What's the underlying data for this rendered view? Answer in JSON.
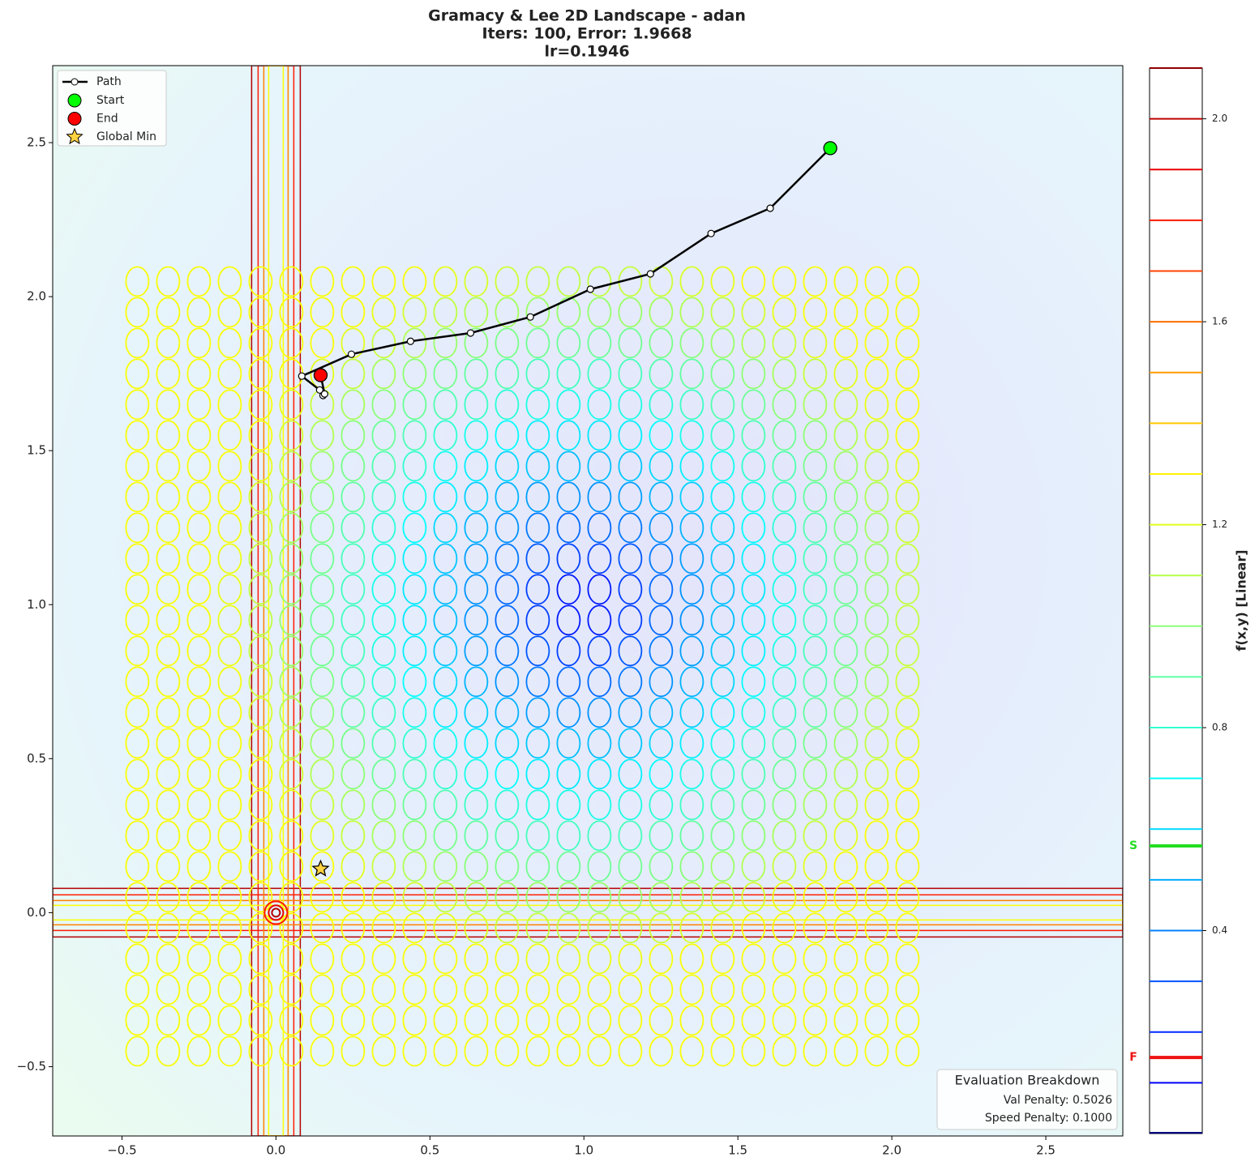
{
  "chart_data": {
    "type": "contour",
    "title_lines": [
      "Gramacy & Lee 2D Landscape - adan",
      "Iters: 100, Error: 1.9668",
      "lr=0.1946"
    ],
    "xlim": [
      -0.725,
      2.75
    ],
    "ylim": [
      -0.725,
      2.75
    ],
    "xticks": [
      {
        "value": -0.5,
        "label": "−0.5"
      },
      {
        "value": 0,
        "label": "0.0"
      },
      {
        "value": 0.5,
        "label": "0.5"
      },
      {
        "value": 1,
        "label": "1.0"
      },
      {
        "value": 1.5,
        "label": "1.5"
      },
      {
        "value": 2,
        "label": "2.0"
      },
      {
        "value": 2.5,
        "label": "2.5"
      }
    ],
    "yticks": [
      {
        "value": -0.5,
        "label": "−0.5"
      },
      {
        "value": 0,
        "label": "0.0"
      },
      {
        "value": 0.5,
        "label": "0.5"
      },
      {
        "value": 1,
        "label": "1.0"
      },
      {
        "value": 1.5,
        "label": "1.5"
      },
      {
        "value": 2,
        "label": "2.0"
      },
      {
        "value": 2.5,
        "label": "2.5"
      }
    ],
    "path": {
      "name": "Path",
      "color": "#000000",
      "x": [
        1.8,
        1.605,
        1.413,
        1.216,
        1.021,
        0.826,
        0.632,
        0.437,
        0.245,
        0.084,
        0.142,
        0.153,
        0.158,
        0.145
      ],
      "y": [
        2.482,
        2.287,
        2.205,
        2.074,
        2.024,
        1.934,
        1.882,
        1.855,
        1.813,
        1.742,
        1.697,
        1.679,
        1.684,
        1.745
      ]
    },
    "points": [
      {
        "name": "Start",
        "x": 1.8,
        "y": 2.482,
        "color": "#00ff00",
        "marker": "circle"
      },
      {
        "name": "End",
        "x": 0.145,
        "y": 1.745,
        "color": "#ff0000",
        "marker": "circle"
      },
      {
        "name": "Global Min",
        "x": 0.145,
        "y": 0.142,
        "color": "#ffd23f",
        "marker": "star"
      }
    ],
    "colorbar": {
      "label": "f(x,y) [Linear]",
      "lim": [
        0,
        2.1
      ],
      "ticks": [
        0.4,
        0.8,
        1.2,
        1.6,
        {
          "value": 2,
          "label": "2.0"
        }
      ],
      "levels": [
        0.1,
        0.2,
        0.3,
        0.4,
        0.5,
        0.6,
        0.7,
        0.8,
        0.9,
        1.0,
        1.1,
        1.2,
        1.3,
        1.4,
        1.5,
        1.6,
        1.7,
        1.8,
        1.9,
        2.0,
        2.1
      ],
      "markers": [
        {
          "label": "S",
          "value": 0.567,
          "color": "#22dd22"
        },
        {
          "label": "F",
          "value": 0.15,
          "color": "#ee1111"
        }
      ]
    },
    "info_box": {
      "title": "Evaluation Breakdown",
      "lines": [
        "Val Penalty: 0.5026",
        "Speed Penalty: 0.1000"
      ]
    }
  }
}
